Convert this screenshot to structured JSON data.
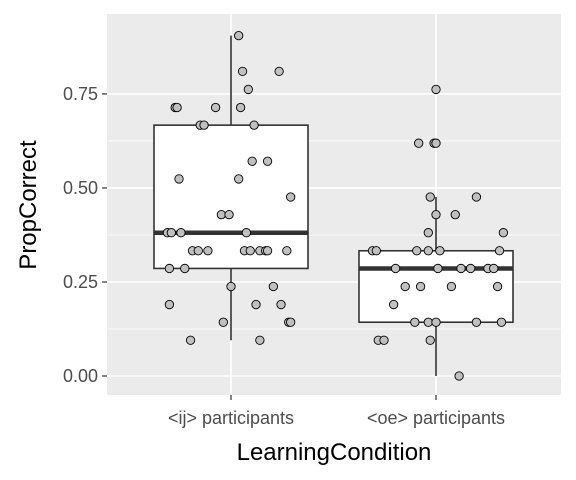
{
  "chart_data": {
    "type": "boxplot",
    "xlabel": "LearningCondition",
    "ylabel": "PropCorrect",
    "categories": [
      "<ij> participants",
      "<oe> participants"
    ],
    "ylim": [
      -0.05,
      0.95
    ],
    "yticks": [
      0.0,
      0.25,
      0.5,
      0.75
    ],
    "ytick_labels": [
      "0.00",
      "0.25",
      "0.50",
      "0.75"
    ],
    "grid": true,
    "legend": "none",
    "colors": {
      "panel": "#ebebeb",
      "grid_major": "#ffffff",
      "box_fill": "#ffffff",
      "box_line": "#333333",
      "point_fill": "#c0c0c0",
      "point_stroke": "#000000"
    },
    "boxes": [
      {
        "category": "<ij> participants",
        "whisker_low": 0.095,
        "q1": 0.286,
        "median": 0.381,
        "q3": 0.667,
        "whisker_high": 0.905
      },
      {
        "category": "<oe> participants",
        "whisker_low": 0.0,
        "q1": 0.143,
        "median": 0.286,
        "q3": 0.333,
        "whisker_high": 0.476
      }
    ],
    "points": [
      {
        "category": "<ij> participants",
        "jitter": 0.04,
        "y": 0.905
      },
      {
        "category": "<ij> participants",
        "jitter": 0.06,
        "y": 0.81
      },
      {
        "category": "<ij> participants",
        "jitter": 0.25,
        "y": 0.81
      },
      {
        "category": "<ij> participants",
        "jitter": 0.09,
        "y": 0.762
      },
      {
        "category": "<ij> participants",
        "jitter": -0.29,
        "y": 0.714
      },
      {
        "category": "<ij> participants",
        "jitter": -0.28,
        "y": 0.714
      },
      {
        "category": "<ij> participants",
        "jitter": -0.08,
        "y": 0.714
      },
      {
        "category": "<ij> participants",
        "jitter": 0.05,
        "y": 0.714
      },
      {
        "category": "<ij> participants",
        "jitter": -0.16,
        "y": 0.667
      },
      {
        "category": "<ij> participants",
        "jitter": -0.14,
        "y": 0.667
      },
      {
        "category": "<ij> participants",
        "jitter": 0.12,
        "y": 0.667
      },
      {
        "category": "<ij> participants",
        "jitter": 0.11,
        "y": 0.571
      },
      {
        "category": "<ij> participants",
        "jitter": 0.19,
        "y": 0.571
      },
      {
        "category": "<ij> participants",
        "jitter": -0.27,
        "y": 0.524
      },
      {
        "category": "<ij> participants",
        "jitter": 0.04,
        "y": 0.524
      },
      {
        "category": "<ij> participants",
        "jitter": 0.31,
        "y": 0.476
      },
      {
        "category": "<ij> participants",
        "jitter": -0.05,
        "y": 0.429
      },
      {
        "category": "<ij> participants",
        "jitter": -0.01,
        "y": 0.429
      },
      {
        "category": "<ij> participants",
        "jitter": -0.33,
        "y": 0.381
      },
      {
        "category": "<ij> participants",
        "jitter": -0.31,
        "y": 0.381
      },
      {
        "category": "<ij> participants",
        "jitter": -0.26,
        "y": 0.381
      },
      {
        "category": "<ij> participants",
        "jitter": 0.08,
        "y": 0.381
      },
      {
        "category": "<ij> participants",
        "jitter": -0.2,
        "y": 0.333
      },
      {
        "category": "<ij> participants",
        "jitter": -0.17,
        "y": 0.333
      },
      {
        "category": "<ij> participants",
        "jitter": -0.12,
        "y": 0.333
      },
      {
        "category": "<ij> participants",
        "jitter": 0.07,
        "y": 0.333
      },
      {
        "category": "<ij> participants",
        "jitter": 0.1,
        "y": 0.333
      },
      {
        "category": "<ij> participants",
        "jitter": 0.15,
        "y": 0.333
      },
      {
        "category": "<ij> participants",
        "jitter": 0.18,
        "y": 0.333
      },
      {
        "category": "<ij> participants",
        "jitter": 0.19,
        "y": 0.333
      },
      {
        "category": "<ij> participants",
        "jitter": 0.29,
        "y": 0.333
      },
      {
        "category": "<ij> participants",
        "jitter": -0.32,
        "y": 0.286
      },
      {
        "category": "<ij> participants",
        "jitter": -0.24,
        "y": 0.286
      },
      {
        "category": "<ij> participants",
        "jitter": 0.0,
        "y": 0.238
      },
      {
        "category": "<ij> participants",
        "jitter": 0.22,
        "y": 0.238
      },
      {
        "category": "<ij> participants",
        "jitter": -0.32,
        "y": 0.19
      },
      {
        "category": "<ij> participants",
        "jitter": 0.13,
        "y": 0.19
      },
      {
        "category": "<ij> participants",
        "jitter": 0.26,
        "y": 0.19
      },
      {
        "category": "<ij> participants",
        "jitter": -0.04,
        "y": 0.143
      },
      {
        "category": "<ij> participants",
        "jitter": 0.3,
        "y": 0.143
      },
      {
        "category": "<ij> participants",
        "jitter": 0.31,
        "y": 0.143
      },
      {
        "category": "<ij> participants",
        "jitter": -0.21,
        "y": 0.095
      },
      {
        "category": "<ij> participants",
        "jitter": 0.15,
        "y": 0.095
      },
      {
        "category": "<oe> participants",
        "jitter": 0.0,
        "y": 0.762
      },
      {
        "category": "<oe> participants",
        "jitter": -0.09,
        "y": 0.619
      },
      {
        "category": "<oe> participants",
        "jitter": -0.01,
        "y": 0.619
      },
      {
        "category": "<oe> participants",
        "jitter": 0.0,
        "y": 0.619
      },
      {
        "category": "<oe> participants",
        "jitter": -0.03,
        "y": 0.476
      },
      {
        "category": "<oe> participants",
        "jitter": 0.21,
        "y": 0.476
      },
      {
        "category": "<oe> participants",
        "jitter": 0.0,
        "y": 0.429
      },
      {
        "category": "<oe> participants",
        "jitter": 0.1,
        "y": 0.429
      },
      {
        "category": "<oe> participants",
        "jitter": -0.04,
        "y": 0.381
      },
      {
        "category": "<oe> participants",
        "jitter": 0.35,
        "y": 0.381
      },
      {
        "category": "<oe> participants",
        "jitter": -0.33,
        "y": 0.333
      },
      {
        "category": "<oe> participants",
        "jitter": -0.31,
        "y": 0.333
      },
      {
        "category": "<oe> participants",
        "jitter": -0.1,
        "y": 0.333
      },
      {
        "category": "<oe> participants",
        "jitter": -0.04,
        "y": 0.333
      },
      {
        "category": "<oe> participants",
        "jitter": 0.02,
        "y": 0.333
      },
      {
        "category": "<oe> participants",
        "jitter": 0.33,
        "y": 0.333
      },
      {
        "category": "<oe> participants",
        "jitter": -0.21,
        "y": 0.286
      },
      {
        "category": "<oe> participants",
        "jitter": 0.01,
        "y": 0.286
      },
      {
        "category": "<oe> participants",
        "jitter": 0.13,
        "y": 0.286
      },
      {
        "category": "<oe> participants",
        "jitter": 0.18,
        "y": 0.286
      },
      {
        "category": "<oe> participants",
        "jitter": 0.27,
        "y": 0.286
      },
      {
        "category": "<oe> participants",
        "jitter": 0.3,
        "y": 0.286
      },
      {
        "category": "<oe> participants",
        "jitter": -0.16,
        "y": 0.238
      },
      {
        "category": "<oe> participants",
        "jitter": -0.08,
        "y": 0.238
      },
      {
        "category": "<oe> participants",
        "jitter": 0.08,
        "y": 0.238
      },
      {
        "category": "<oe> participants",
        "jitter": 0.32,
        "y": 0.238
      },
      {
        "category": "<oe> participants",
        "jitter": -0.22,
        "y": 0.19
      },
      {
        "category": "<oe> participants",
        "jitter": -0.11,
        "y": 0.143
      },
      {
        "category": "<oe> participants",
        "jitter": -0.04,
        "y": 0.143
      },
      {
        "category": "<oe> participants",
        "jitter": 0.0,
        "y": 0.143
      },
      {
        "category": "<oe> participants",
        "jitter": 0.21,
        "y": 0.143
      },
      {
        "category": "<oe> participants",
        "jitter": 0.34,
        "y": 0.143
      },
      {
        "category": "<oe> participants",
        "jitter": -0.3,
        "y": 0.095
      },
      {
        "category": "<oe> participants",
        "jitter": -0.27,
        "y": 0.095
      },
      {
        "category": "<oe> participants",
        "jitter": -0.03,
        "y": 0.095
      },
      {
        "category": "<oe> participants",
        "jitter": 0.12,
        "y": 0.0
      }
    ]
  }
}
